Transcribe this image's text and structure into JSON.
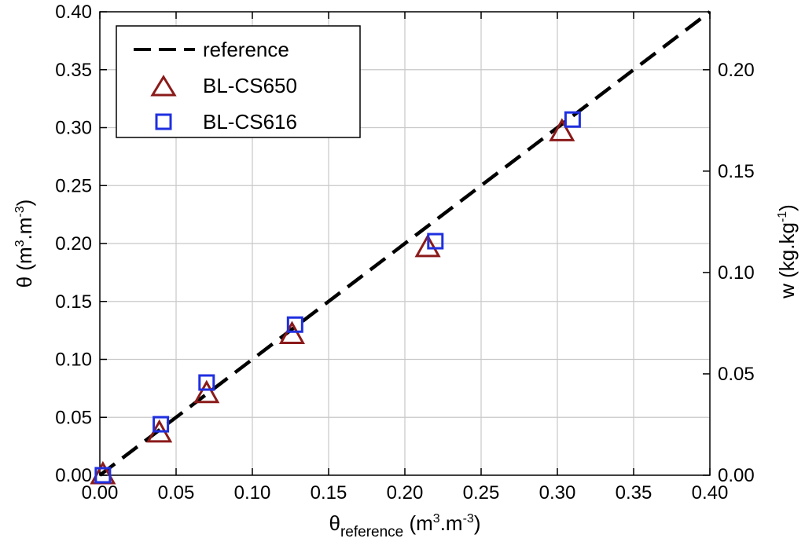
{
  "chart_data": {
    "type": "scatter",
    "title": "",
    "x_axis": {
      "label_main": "θ",
      "label_sub": "reference",
      "label_unit": " (m",
      "label_unit_sup": "3",
      "label_unit_rest": ".m",
      "label_unit_sup2": "-3",
      "label_close": ")",
      "range": [
        0,
        0.4
      ],
      "ticks": [
        "0.00",
        "0.05",
        "0.10",
        "0.15",
        "0.20",
        "0.25",
        "0.30",
        "0.35",
        "0.40"
      ]
    },
    "y_axis": {
      "label_main": "θ (m",
      "label_sup": "3",
      "label_mid": ".m",
      "label_sup2": "-3",
      "label_close": ")",
      "range": [
        0,
        0.4
      ],
      "ticks": [
        "0.00",
        "0.05",
        "0.10",
        "0.15",
        "0.20",
        "0.25",
        "0.30",
        "0.35",
        "0.40"
      ]
    },
    "y2_axis": {
      "label_main": "w (kg.kg",
      "label_sup": "-1",
      "label_close": ")",
      "range": [
        0,
        0.2286
      ],
      "ticks": [
        "0.00",
        "0.05",
        "0.10",
        "0.15",
        "0.20"
      ],
      "tick_values": [
        0,
        0.05,
        0.1,
        0.15,
        0.2
      ]
    },
    "grid": true,
    "legend_position": "top-left",
    "series": [
      {
        "name": "reference",
        "kind": "line",
        "style": "dashed",
        "color": "#000000",
        "x": [
          0,
          0.4
        ],
        "y": [
          0,
          0.4
        ]
      },
      {
        "name": "BL-CS650",
        "kind": "marker",
        "marker": "triangle",
        "color": "#8b1a1a",
        "x": [
          0.002,
          0.039,
          0.07,
          0.126,
          0.215,
          0.303
        ],
        "y": [
          0.0,
          0.036,
          0.07,
          0.121,
          0.196,
          0.296
        ]
      },
      {
        "name": "BL-CS616",
        "kind": "marker",
        "marker": "square",
        "color": "#1f2fe0",
        "x": [
          0.002,
          0.04,
          0.07,
          0.128,
          0.22,
          0.31
        ],
        "y": [
          0.0,
          0.044,
          0.08,
          0.13,
          0.202,
          0.307
        ]
      }
    ]
  }
}
